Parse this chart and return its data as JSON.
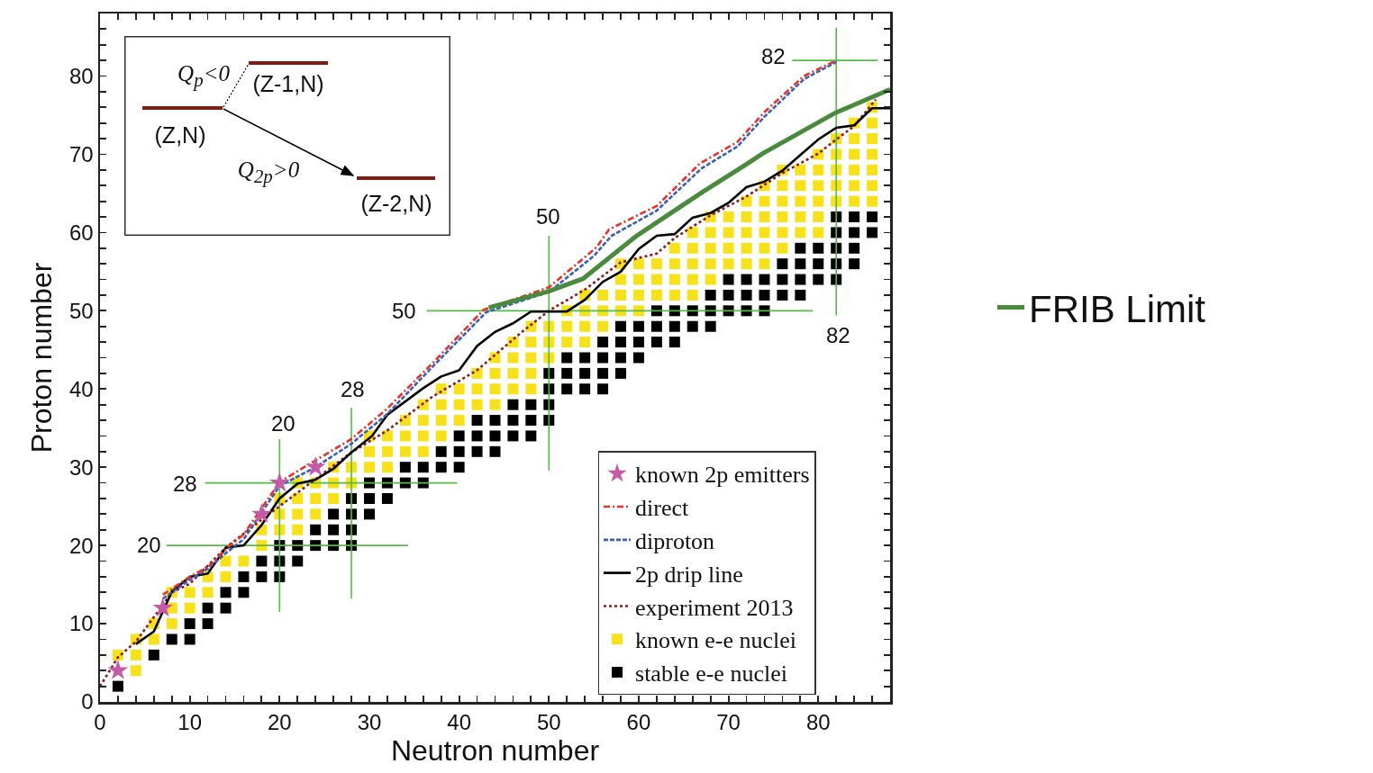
{
  "chart_data": {
    "type": "scatter",
    "xlabel": "Neutron number",
    "ylabel": "Proton number",
    "xlim": [
      0,
      88
    ],
    "ylim": [
      0,
      88
    ],
    "xticks": [
      0,
      {
        "value": 2,
        "label": null
      },
      {
        "value": 4,
        "label": null
      },
      {
        "value": 6,
        "label": null
      },
      {
        "value": 8,
        "label": null
      },
      10,
      {
        "value": 12,
        "label": null
      },
      {
        "value": 14,
        "label": null
      },
      {
        "value": 16,
        "label": null
      },
      {
        "value": 18,
        "label": null
      },
      20,
      {
        "value": 22,
        "label": null
      },
      {
        "value": 24,
        "label": null
      },
      {
        "value": 26,
        "label": null
      },
      {
        "value": 28,
        "label": null
      },
      30,
      {
        "value": 32,
        "label": null
      },
      {
        "value": 34,
        "label": null
      },
      {
        "value": 36,
        "label": null
      },
      {
        "value": 38,
        "label": null
      },
      40,
      {
        "value": 42,
        "label": null
      },
      {
        "value": 44,
        "label": null
      },
      {
        "value": 46,
        "label": null
      },
      {
        "value": 48,
        "label": null
      },
      50,
      {
        "value": 52,
        "label": null
      },
      {
        "value": 54,
        "label": null
      },
      {
        "value": 56,
        "label": null
      },
      {
        "value": 58,
        "label": null
      },
      60,
      {
        "value": 62,
        "label": null
      },
      {
        "value": 64,
        "label": null
      },
      {
        "value": 66,
        "label": null
      },
      {
        "value": 68,
        "label": null
      },
      70,
      {
        "value": 72,
        "label": null
      },
      {
        "value": 74,
        "label": null
      },
      {
        "value": 76,
        "label": null
      },
      {
        "value": 78,
        "label": null
      },
      80,
      {
        "value": 82,
        "label": null
      },
      {
        "value": 84,
        "label": null
      },
      {
        "value": 86,
        "label": null
      }
    ],
    "yticks": [
      0,
      {
        "value": 2,
        "label": null
      },
      {
        "value": 4,
        "label": null
      },
      {
        "value": 6,
        "label": null
      },
      {
        "value": 8,
        "label": null
      },
      10,
      {
        "value": 12,
        "label": null
      },
      {
        "value": 14,
        "label": null
      },
      {
        "value": 16,
        "label": null
      },
      {
        "value": 18,
        "label": null
      },
      20,
      {
        "value": 22,
        "label": null
      },
      {
        "value": 24,
        "label": null
      },
      {
        "value": 26,
        "label": null
      },
      {
        "value": 28,
        "label": null
      },
      30,
      {
        "value": 32,
        "label": null
      },
      {
        "value": 34,
        "label": null
      },
      {
        "value": 36,
        "label": null
      },
      {
        "value": 38,
        "label": null
      },
      40,
      {
        "value": 42,
        "label": null
      },
      {
        "value": 44,
        "label": null
      },
      {
        "value": 46,
        "label": null
      },
      {
        "value": 48,
        "label": null
      },
      50,
      {
        "value": 52,
        "label": null
      },
      {
        "value": 54,
        "label": null
      },
      {
        "value": 56,
        "label": null
      },
      {
        "value": 58,
        "label": null
      },
      60,
      {
        "value": 62,
        "label": null
      },
      {
        "value": 64,
        "label": null
      },
      {
        "value": 66,
        "label": null
      },
      {
        "value": 68,
        "label": null
      },
      70,
      {
        "value": 72,
        "label": null
      },
      {
        "value": 74,
        "label": null
      },
      {
        "value": 76,
        "label": null
      },
      {
        "value": 78,
        "label": null
      },
      80,
      {
        "value": 82,
        "label": null
      },
      {
        "value": 84,
        "label": null
      },
      {
        "value": 86,
        "label": null
      }
    ],
    "legend": "bottom right",
    "series": [
      {
        "name": "stable e-e nuclei",
        "marker": "square",
        "color": "#000000",
        "x": [
          2,
          6,
          8,
          10,
          10,
          12,
          12,
          14,
          14,
          16,
          16,
          18,
          20,
          18,
          20,
          22,
          20,
          22,
          24,
          26,
          28,
          24,
          26,
          28,
          26,
          28,
          30,
          28,
          30,
          32,
          30,
          32,
          34,
          36,
          34,
          36,
          38,
          40,
          38,
          40,
          42,
          44,
          40,
          42,
          44,
          46,
          48,
          42,
          44,
          46,
          48,
          50,
          46,
          48,
          50,
          50,
          52,
          54,
          56,
          50,
          52,
          54,
          56,
          58,
          52,
          54,
          56,
          58,
          60,
          56,
          58,
          60,
          62,
          64,
          58,
          60,
          62,
          64,
          66,
          68,
          62,
          64,
          66,
          68,
          70,
          72,
          74,
          68,
          70,
          72,
          74,
          76,
          78,
          70,
          72,
          74,
          76,
          78,
          80,
          82,
          76,
          78,
          80,
          82,
          84,
          78,
          80,
          82,
          84,
          82,
          84,
          86,
          82,
          84,
          86
        ],
        "values": [
          2,
          6,
          8,
          8,
          10,
          10,
          12,
          12,
          14,
          14,
          16,
          16,
          16,
          18,
          18,
          18,
          20,
          20,
          20,
          20,
          20,
          22,
          22,
          22,
          24,
          24,
          24,
          26,
          26,
          26,
          28,
          28,
          28,
          28,
          30,
          30,
          30,
          30,
          32,
          32,
          32,
          32,
          34,
          34,
          34,
          34,
          34,
          36,
          36,
          36,
          36,
          36,
          38,
          38,
          38,
          40,
          40,
          40,
          40,
          42,
          42,
          42,
          42,
          42,
          44,
          44,
          44,
          44,
          44,
          46,
          46,
          46,
          46,
          46,
          48,
          48,
          48,
          48,
          48,
          48,
          50,
          50,
          50,
          50,
          50,
          50,
          50,
          52,
          52,
          52,
          52,
          52,
          52,
          54,
          54,
          54,
          54,
          54,
          54,
          54,
          56,
          56,
          56,
          56,
          56,
          58,
          58,
          58,
          58,
          60,
          60,
          60,
          62,
          62,
          62
        ]
      },
      {
        "name": "known e-e nuclei",
        "marker": "square",
        "color": "#f7e11a",
        "x": [
          4,
          2,
          4,
          4,
          6,
          6,
          8,
          8,
          10,
          8,
          10,
          12,
          12,
          14,
          14,
          16,
          18,
          18,
          20,
          22,
          20,
          22,
          24,
          20,
          22,
          24,
          26,
          22,
          24,
          26,
          28,
          26,
          28,
          30,
          32,
          30,
          32,
          34,
          36,
          30,
          32,
          34,
          36,
          38,
          34,
          36,
          38,
          40,
          36,
          38,
          40,
          42,
          44,
          38,
          40,
          42,
          44,
          46,
          48,
          42,
          44,
          46,
          48,
          44,
          46,
          48,
          50,
          46,
          48,
          50,
          52,
          54,
          48,
          50,
          52,
          54,
          56,
          52,
          54,
          56,
          58,
          60,
          54,
          56,
          58,
          60,
          62,
          64,
          66,
          58,
          60,
          62,
          64,
          66,
          68,
          58,
          60,
          62,
          64,
          66,
          68,
          70,
          72,
          74,
          64,
          66,
          68,
          70,
          72,
          74,
          76,
          66,
          68,
          70,
          72,
          74,
          76,
          78,
          80,
          68,
          70,
          72,
          74,
          76,
          78,
          80,
          72,
          74,
          76,
          78,
          80,
          82,
          84,
          86,
          74,
          76,
          78,
          80,
          82,
          84,
          86,
          76,
          78,
          80,
          82,
          84,
          86,
          80,
          82,
          84,
          86,
          82,
          84,
          86,
          84,
          86,
          86
        ],
        "values": [
          4,
          6,
          6,
          8,
          8,
          10,
          10,
          12,
          12,
          14,
          14,
          14,
          16,
          16,
          18,
          18,
          20,
          22,
          22,
          22,
          24,
          24,
          24,
          26,
          26,
          26,
          26,
          28,
          28,
          28,
          28,
          30,
          30,
          30,
          30,
          32,
          32,
          32,
          32,
          34,
          34,
          34,
          34,
          34,
          36,
          36,
          36,
          36,
          38,
          38,
          38,
          38,
          38,
          40,
          40,
          40,
          40,
          40,
          40,
          42,
          42,
          42,
          42,
          44,
          44,
          44,
          44,
          46,
          46,
          46,
          46,
          46,
          48,
          48,
          48,
          48,
          48,
          50,
          50,
          50,
          50,
          50,
          52,
          52,
          52,
          52,
          52,
          52,
          52,
          54,
          54,
          54,
          54,
          54,
          54,
          56,
          56,
          56,
          56,
          56,
          56,
          56,
          56,
          56,
          58,
          58,
          58,
          58,
          58,
          58,
          58,
          60,
          60,
          60,
          60,
          60,
          60,
          60,
          60,
          62,
          62,
          62,
          62,
          62,
          62,
          62,
          64,
          64,
          64,
          64,
          64,
          64,
          64,
          64,
          66,
          66,
          66,
          66,
          66,
          66,
          66,
          68,
          68,
          68,
          68,
          68,
          68,
          70,
          70,
          70,
          70,
          72,
          72,
          72,
          74,
          74,
          76
        ]
      },
      {
        "type": "line",
        "line_style": "solid",
        "color": "#55bb44",
        "x": [
          7.4,
          34.3
        ],
        "values": [
          20,
          20
        ]
      },
      {
        "type": "line",
        "line_style": "solid",
        "color": "#55bb44",
        "x": [
          11.7,
          39.8
        ],
        "values": [
          28,
          28
        ]
      },
      {
        "type": "line",
        "line_style": "solid",
        "color": "#55bb44",
        "x": [
          36.4,
          79.4
        ],
        "values": [
          50,
          50
        ]
      },
      {
        "type": "line",
        "line_style": "solid",
        "color": "#55bb44",
        "x": [
          77.1,
          86.6
        ],
        "values": [
          82,
          82
        ]
      },
      {
        "type": "line",
        "line_style": "solid",
        "color": "#55bb44",
        "x": [
          20,
          20
        ],
        "values": [
          11.5,
          33.6
        ]
      },
      {
        "type": "line",
        "line_style": "solid",
        "color": "#55bb44",
        "x": [
          28,
          28
        ],
        "values": [
          13.2,
          37.6
        ]
      },
      {
        "type": "line",
        "line_style": "solid",
        "color": "#55bb44",
        "x": [
          50,
          50
        ],
        "values": [
          29.6,
          59.6
        ]
      },
      {
        "type": "line",
        "line_style": "solid",
        "color": "#55bb44",
        "x": [
          82,
          82
        ],
        "values": [
          49.4,
          86.2
        ]
      },
      {
        "name": "experiment 2013",
        "type": "line",
        "line_style": "dotted",
        "color": "#8b1a1a",
        "x": [
          0,
          2,
          4,
          8,
          10,
          14,
          18,
          28,
          32,
          37,
          42,
          47,
          50,
          54,
          58,
          62,
          64,
          68,
          72,
          76,
          80,
          82,
          84,
          86.4
        ],
        "values": [
          2,
          5.7,
          7.7,
          14,
          15.1,
          19.7,
          23.3,
          31.9,
          34.7,
          39,
          42.4,
          47.3,
          50,
          52.7,
          56.2,
          57.3,
          59.3,
          62.2,
          64.6,
          67.6,
          70.1,
          71.9,
          73.6,
          77
        ]
      },
      {
        "name": "2p drip line",
        "type": "line",
        "line_style": "solid",
        "color": "#000000",
        "x": [
          4,
          6,
          8,
          10,
          12,
          14,
          16,
          18,
          20,
          22,
          24,
          26,
          28,
          30.3,
          32,
          36,
          38,
          40,
          42,
          44,
          46,
          48,
          52,
          54,
          56,
          58,
          60,
          62,
          64,
          66,
          68,
          70,
          72,
          74,
          76,
          78,
          80,
          82,
          84,
          86,
          88
        ],
        "values": [
          7.4,
          9,
          14.1,
          16,
          16.4,
          19.7,
          20,
          22.6,
          26,
          27.9,
          28.4,
          29.8,
          31.9,
          34,
          36.7,
          40.1,
          41.6,
          42.4,
          45.5,
          47.3,
          48.4,
          49.9,
          49.9,
          51.4,
          53.7,
          55,
          57.9,
          59.6,
          59.8,
          61.9,
          62.5,
          63.8,
          65.8,
          66.5,
          67.9,
          69.9,
          71.9,
          73.4,
          73.7,
          75.9,
          75.9
        ]
      },
      {
        "name": "diproton",
        "type": "line",
        "line_style": "dashed",
        "color": "#3a5fb5",
        "x": [
          7,
          10,
          12,
          14,
          16,
          20,
          24,
          28,
          32,
          37,
          43,
          50,
          55,
          57,
          62,
          67,
          71,
          74,
          78.4,
          82
        ],
        "values": [
          13.2,
          15.6,
          17,
          19,
          20.8,
          27.6,
          30,
          33,
          36.8,
          42.8,
          49.8,
          52.4,
          57,
          59.6,
          62.8,
          68.2,
          71,
          74.8,
          79.6,
          81.8
        ]
      },
      {
        "name": "direct",
        "type": "line",
        "line_style": "dashdot",
        "color": "#e8312a",
        "x": [
          7,
          10,
          12.2,
          14,
          16,
          20,
          23.6,
          28,
          32,
          37.3,
          42.7,
          50,
          55.3,
          56.7,
          62,
          66.8,
          71,
          74,
          78.4,
          82
        ],
        "values": [
          13.7,
          16,
          17.4,
          19.5,
          21.4,
          28.1,
          30.6,
          33.6,
          37.5,
          43.6,
          50.1,
          53,
          58.1,
          60.4,
          63.4,
          68.8,
          71.6,
          75.4,
          80,
          82
        ]
      },
      {
        "name": "known 2p emitters",
        "marker": "star",
        "color": "#c65aa6",
        "x": [
          2,
          7,
          18,
          20,
          24
        ],
        "values": [
          4,
          12,
          24,
          28,
          30
        ]
      },
      {
        "name": "FRIB Limit",
        "type": "line",
        "line_style": "solid",
        "color": "#4a8a3c",
        "x": [
          43.3,
          50,
          53.8,
          59.8,
          67,
          72.1,
          73.8,
          81.9,
          88
        ],
        "values": [
          50.4,
          52.5,
          54.1,
          59.6,
          65.1,
          68.8,
          70.1,
          75.3,
          78.3
        ]
      }
    ],
    "annotations": [
      "Q$_{p}$<0",
      "(Z-1,N)",
      "(Z,N)",
      "Q$_{2p}$>0",
      "(Z-2,N)",
      "20",
      "28",
      "50",
      "82",
      "20",
      "28",
      "50",
      "82"
    ]
  }
}
